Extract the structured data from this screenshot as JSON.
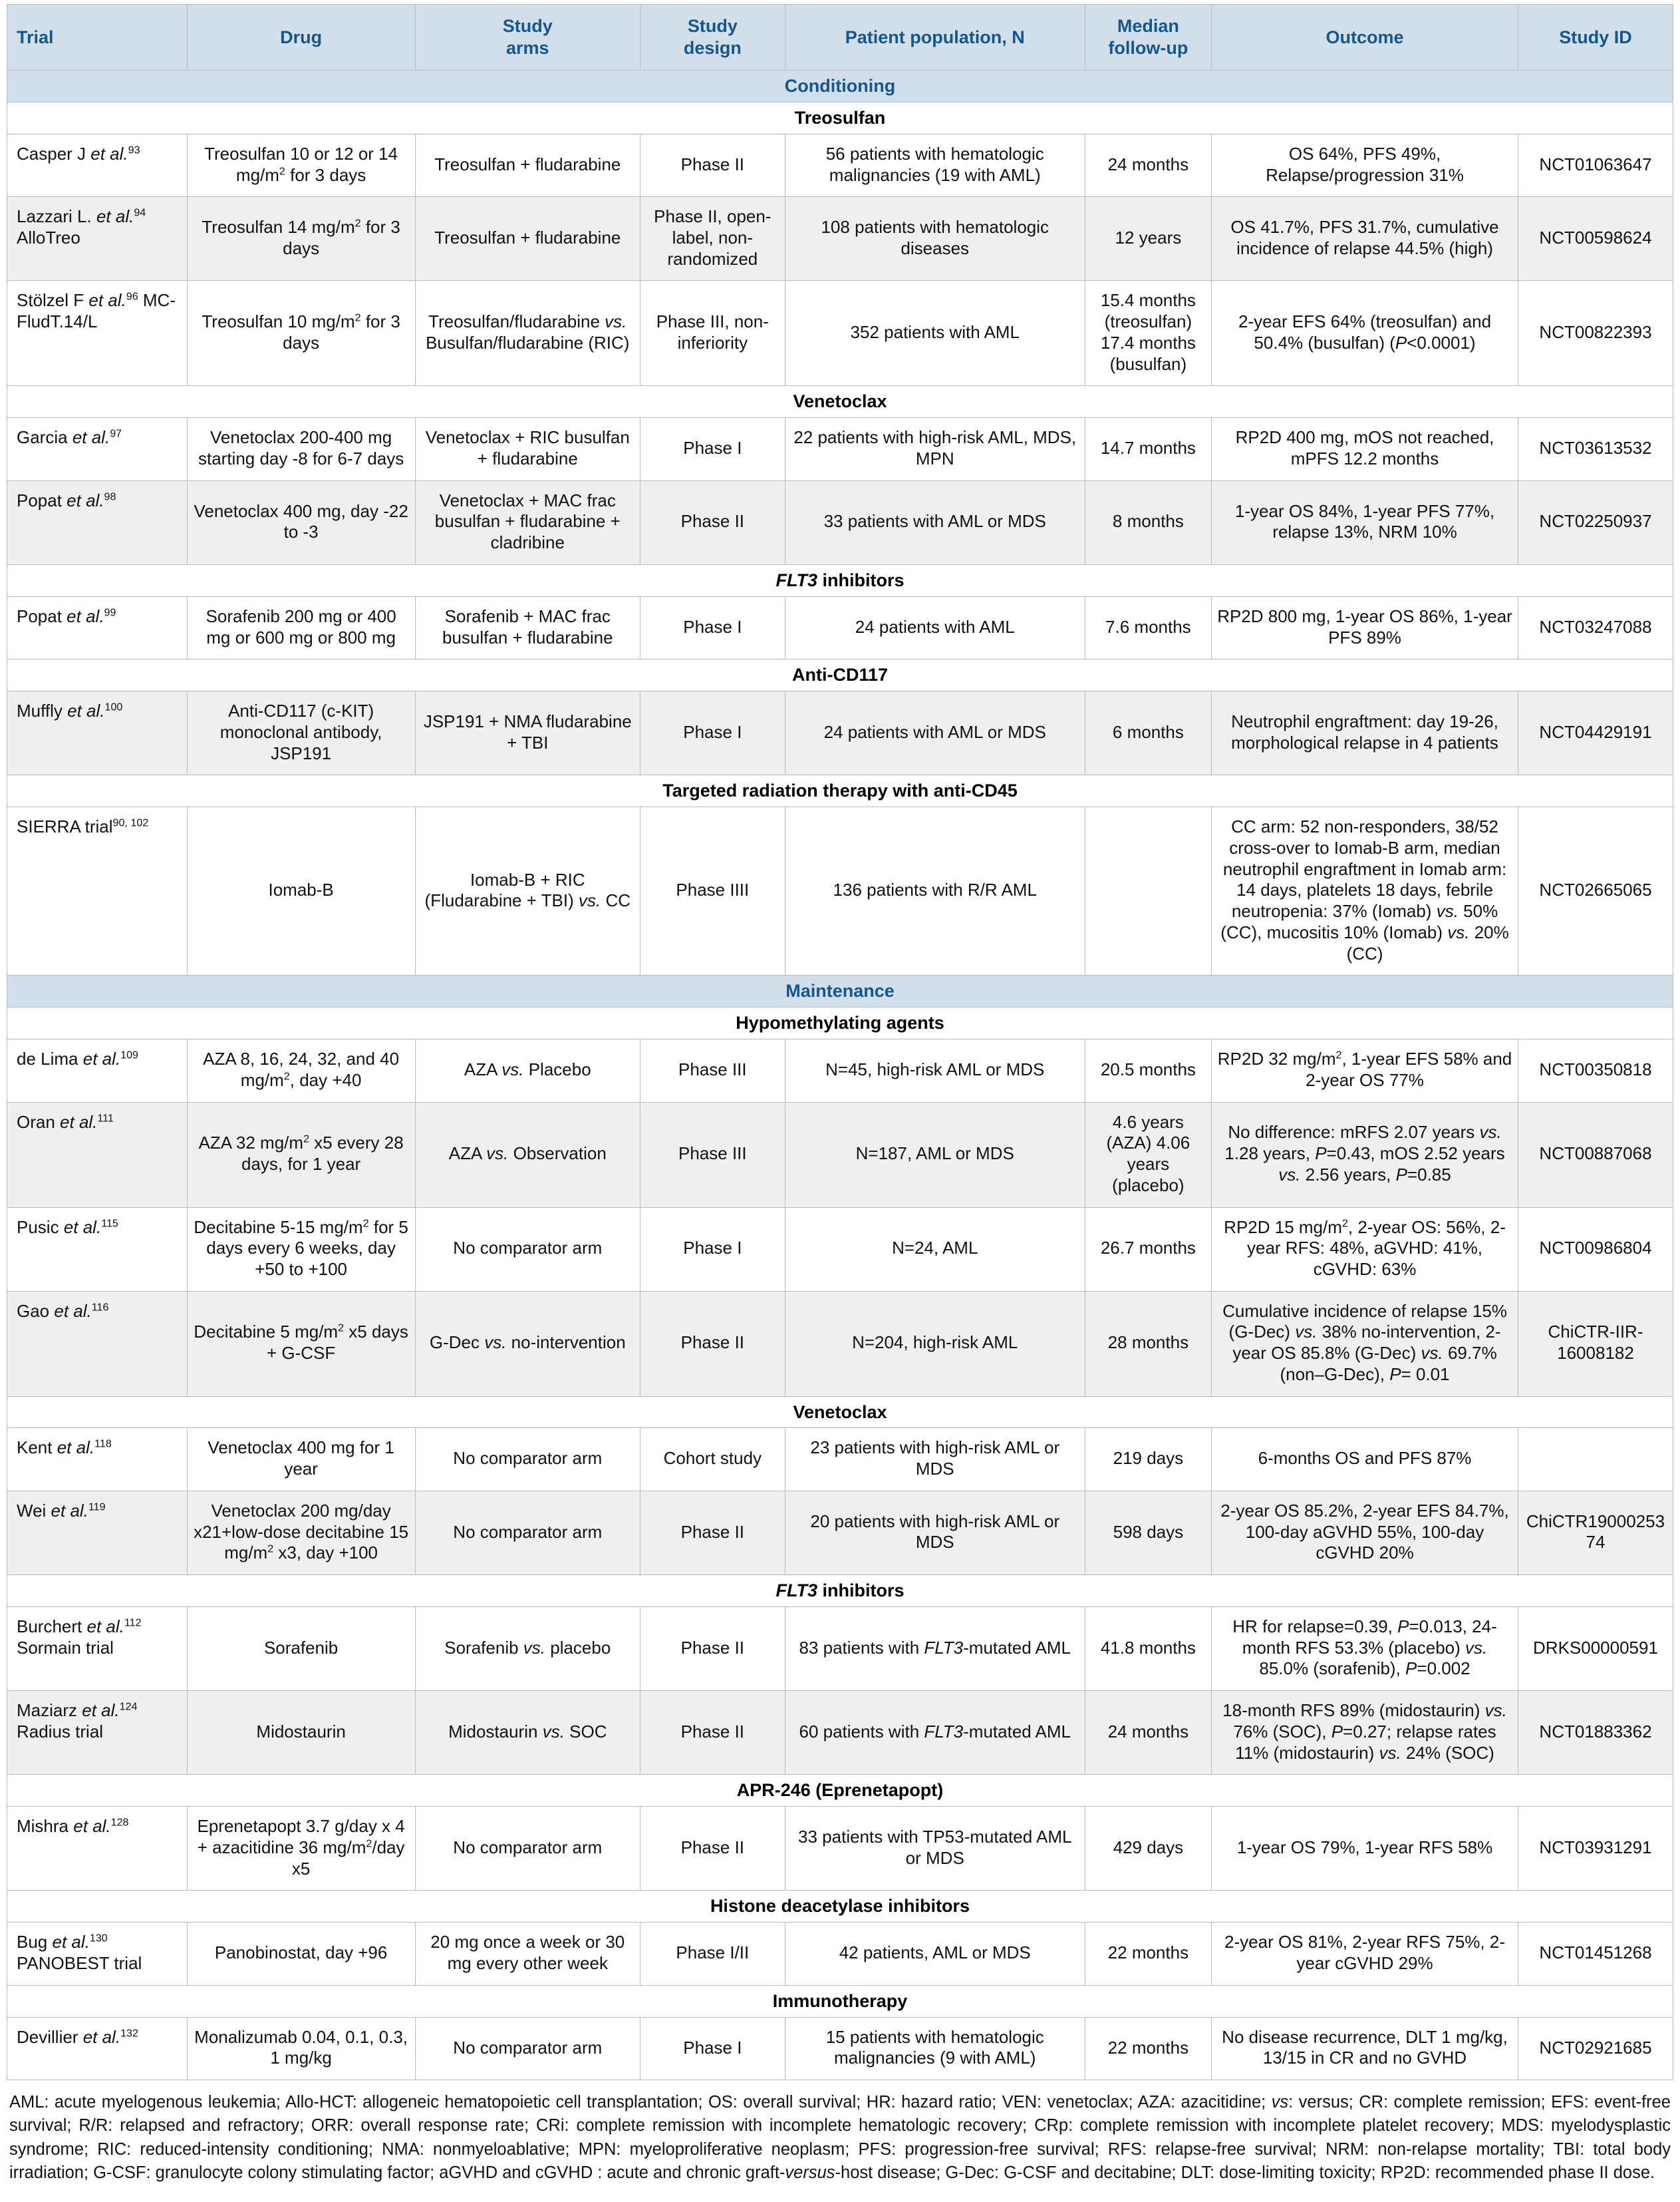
{
  "table": {
    "columns": [
      "Trial",
      "Drug",
      "Study\narms",
      "Study\ndesign",
      "Patient population, N",
      "Median\nfollow-up",
      "Outcome",
      "Study ID"
    ],
    "groups": [
      {
        "label": "Conditioning",
        "subsections": [
          {
            "label": "Treosulfan",
            "rows": [
              {
                "shaded": false,
                "trial": "Casper J //et al.//^{93}",
                "drug": "Treosulfan 10 or 12 or 14 mg/m^{2} for 3 days",
                "arms": "Treosulfan + fludarabine",
                "design": "Phase II",
                "population": "56 patients with hematologic malignancies (19 with AML)",
                "followup": "24 months",
                "outcome": "OS 64%, PFS 49%, Relapse/progression 31%",
                "id": "NCT01063647"
              },
              {
                "shaded": true,
                "trial": "Lazzari L. //et al.//^{94} AlloTreo",
                "drug": "Treosulfan 14 mg/m^{2} for 3 days",
                "arms": "Treosulfan + fludarabine",
                "design": "Phase II, open-label, non-randomized",
                "population": "108 patients with hematologic diseases",
                "followup": "12 years",
                "outcome": "OS 41.7%, PFS 31.7%, cumulative incidence of relapse 44.5% (high)",
                "id": "NCT00598624"
              },
              {
                "shaded": false,
                "trial": "Stölzel F //et al.//^{96} MC-FludT.14/L",
                "drug": "Treosulfan 10 mg/m^{2} for 3 days",
                "arms": "Treosulfan/fludarabine //vs.// Busulfan/fludarabine (RIC)",
                "design": "Phase III, non-inferiority",
                "population": "352 patients with AML",
                "followup": "15.4 months (treosulfan) 17.4 months (busulfan)",
                "outcome": "2-year EFS 64% (treosulfan) and 50.4% (busulfan) (//P//<0.0001)",
                "id": "NCT00822393"
              }
            ]
          },
          {
            "label": "Venetoclax",
            "rows": [
              {
                "shaded": false,
                "trial": "Garcia //et al.//^{97}",
                "drug": "Venetoclax 200-400 mg starting day -8 for 6-7 days",
                "arms": "Venetoclax + RIC busulfan + fludarabine",
                "design": "Phase I",
                "population": "22 patients with high-risk AML, MDS, MPN",
                "followup": "14.7 months",
                "outcome": "RP2D 400 mg, mOS not reached, mPFS 12.2 months",
                "id": "NCT03613532"
              },
              {
                "shaded": true,
                "trial": "Popat //et al.//^{98}",
                "drug": "Venetoclax 400 mg, day -22 to -3",
                "arms": "Venetoclax + MAC frac busulfan + fludarabine + cladribine",
                "design": "Phase II",
                "population": "33 patients with AML or MDS",
                "followup": "8 months",
                "outcome": "1-year OS 84%, 1-year PFS 77%, relapse 13%, NRM 10%",
                "id": "NCT02250937"
              }
            ]
          },
          {
            "label": "//FLT3// inhibitors",
            "rows": [
              {
                "shaded": false,
                "trial": "Popat //et al.//^{99}",
                "drug": "Sorafenib 200 mg or 400 mg or 600 mg or 800 mg",
                "arms": "Sorafenib + MAC frac busulfan + fludarabine",
                "design": "Phase I",
                "population": "24 patients with AML",
                "followup": "7.6 months",
                "outcome": "RP2D 800 mg, 1-year OS 86%, 1-year PFS 89%",
                "id": "NCT03247088"
              }
            ]
          },
          {
            "label": "Anti-CD117",
            "rows": [
              {
                "shaded": true,
                "trial": "Muffly //et al.//^{100}",
                "drug": "Anti-CD117 (c-KIT) monoclonal antibody, JSP191",
                "arms": "JSP191 + NMA fludarabine + TBI",
                "design": "Phase I",
                "population": "24 patients with AML or MDS",
                "followup": "6 months",
                "outcome": "Neutrophil engraftment: day 19-26, morphological relapse in 4 patients",
                "id": "NCT04429191"
              }
            ]
          },
          {
            "label": "Targeted radiation therapy with anti-CD45",
            "rows": [
              {
                "shaded": false,
                "trial": "SIERRA trial^{90, 102}",
                "drug": "Iomab-B",
                "arms": "Iomab-B + RIC (Fludarabine + TBI) //vs.// CC",
                "design": "Phase IIII",
                "population": "136 patients with R/R AML",
                "followup": "",
                "outcome": "CC arm: 52 non-responders, 38/52 cross-over to Iomab-B arm, median neutrophil engraftment in Iomab arm: 14 days, platelets 18 days, febrile neutropenia: 37% (Iomab) //vs.// 50% (CC), mucositis 10% (Iomab) //vs.// 20% (CC)",
                "id": "NCT02665065"
              }
            ]
          }
        ]
      },
      {
        "label": "Maintenance",
        "subsections": [
          {
            "label": "Hypomethylating agents",
            "rows": [
              {
                "shaded": false,
                "trial": "de Lima //et al.//^{109}",
                "drug": "AZA 8, 16, 24, 32, and 40 mg/m^{2}, day +40",
                "arms": "AZA //vs.// Placebo",
                "design": "Phase III",
                "population": "N=45, high-risk AML or MDS",
                "followup": "20.5 months",
                "outcome": "RP2D 32 mg/m^{2}, 1-year EFS 58% and 2-year OS 77%",
                "id": "NCT00350818"
              },
              {
                "shaded": true,
                "trial": "Oran //et al.//^{111}",
                "drug": "AZA 32 mg/m^{2} x5 every 28 days, for 1 year",
                "arms": "AZA //vs.// Observation",
                "design": "Phase III",
                "population": "N=187, AML or MDS",
                "followup": "4.6 years (AZA) 4.06 years (placebo)",
                "outcome": "No difference: mRFS 2.07 years //vs.// 1.28 years, //P//=0.43, mOS 2.52 years //vs.// 2.56 years, //P//=0.85",
                "id": "NCT00887068"
              },
              {
                "shaded": false,
                "trial": "Pusic //et al.//^{115}",
                "drug": "Decitabine 5-15 mg/m^{2} for 5 days every 6 weeks, day +50 to +100",
                "arms": "No comparator arm",
                "design": "Phase I",
                "population": "N=24, AML",
                "followup": "26.7 months",
                "outcome": "RP2D 15 mg/m^{2}, 2-year OS: 56%, 2-year RFS: 48%, aGVHD: 41%, cGVHD: 63%",
                "id": "NCT00986804"
              },
              {
                "shaded": true,
                "trial": "Gao //et al.//^{116}",
                "drug": "Decitabine 5 mg/m^{2} x5 days + G-CSF",
                "arms": "G-Dec //vs.// no-intervention",
                "design": "Phase II",
                "population": "N=204, high-risk AML",
                "followup": "28 months",
                "outcome": "Cumulative incidence of relapse 15% (G-Dec) //vs.// 38% no-intervention, 2-year OS 85.8% (G-Dec) //vs.// 69.7% (non–G-Dec), //P//= 0.01",
                "id": "ChiCTR-IIR-16008182"
              }
            ]
          },
          {
            "label": "Venetoclax",
            "rows": [
              {
                "shaded": false,
                "trial": "Kent //et al.//^{118}",
                "drug": "Venetoclax 400 mg for 1 year",
                "arms": "No comparator arm",
                "design": "Cohort study",
                "population": "23 patients with high-risk AML or MDS",
                "followup": "219 days",
                "outcome": "6-months OS and PFS 87%",
                "id": ""
              },
              {
                "shaded": true,
                "trial": "Wei //et al.//^{119}",
                "drug": "Venetoclax 200 mg/day x21+low-dose decitabine 15 mg/m^{2} x3, day +100",
                "arms": "No comparator arm",
                "design": "Phase II",
                "population": "20 patients with high-risk AML or MDS",
                "followup": "598 days",
                "outcome": "2-year OS 85.2%, 2-year EFS 84.7%, 100-day aGVHD 55%, 100-day cGVHD 20%",
                "id": "ChiCTR1900025374"
              }
            ]
          },
          {
            "label": "//FLT3// inhibitors",
            "rows": [
              {
                "shaded": false,
                "trial": "Burchert //et al.//^{112} Sormain trial",
                "drug": "Sorafenib",
                "arms": "Sorafenib //vs.// placebo",
                "design": "Phase II",
                "population": "83 patients with //FLT3//-mutated AML",
                "followup": "41.8 months",
                "outcome": "HR for relapse=0.39, //P//=0.013, 24-month RFS 53.3% (placebo) //vs.// 85.0% (sorafenib), //P//=0.002",
                "id": "DRKS00000591"
              },
              {
                "shaded": true,
                "trial": "Maziarz //et al.//^{124} Radius trial",
                "drug": "Midostaurin",
                "arms": "Midostaurin //vs.// SOC",
                "design": "Phase II",
                "population": "60 patients with //FLT3//-mutated AML",
                "followup": "24 months",
                "outcome": "18-month RFS 89% (midostaurin) //vs.// 76% (SOC), //P//=0.27; relapse rates 11% (midostaurin) //vs.// 24% (SOC)",
                "id": "NCT01883362"
              }
            ]
          },
          {
            "label": "APR-246 (Eprenetapopt)",
            "rows": [
              {
                "shaded": false,
                "trial": "Mishra //et al.//^{128}",
                "drug": "Eprenetapopt 3.7 g/day x 4 + azacitidine 36 mg/m^{2}/day x5",
                "arms": "No comparator arm",
                "design": "Phase II",
                "population": "33 patients with TP53-mutated AML or MDS",
                "followup": "429 days",
                "outcome": "1-year OS 79%, 1-year RFS 58%",
                "id": "NCT03931291"
              }
            ]
          },
          {
            "label": "Histone deacetylase inhibitors",
            "rows": [
              {
                "shaded": false,
                "trial": "Bug //et al.//^{130} PANOBEST trial",
                "drug": "Panobinostat, day +96",
                "arms": "20 mg once a week or 30 mg every other week",
                "design": "Phase I/II",
                "population": "42 patients, AML or MDS",
                "followup": "22 months",
                "outcome": "2-year OS 81%, 2-year RFS 75%, 2-year cGVHD 29%",
                "id": "NCT01451268"
              }
            ]
          },
          {
            "label": "Immunotherapy",
            "rows": [
              {
                "shaded": false,
                "trial": "Devillier //et al.//^{132}",
                "drug": "Monalizumab 0.04, 0.1, 0.3, 1 mg/kg",
                "arms": "No comparator arm",
                "design": "Phase I",
                "population": "15 patients with hematologic malignancies (9 with AML)",
                "followup": "22 months",
                "outcome": "No disease recurrence, DLT 1 mg/kg, 13/15 in CR and no GVHD",
                "id": "NCT02921685"
              }
            ]
          }
        ]
      }
    ]
  },
  "colors": {
    "band_background": "#d2deea",
    "band_text": "#14578d",
    "shaded_row": "#efefef"
  },
  "footnote": "AML: acute myelogenous leukemia; Allo-HCT: allogeneic hematopoietic cell transplantation; OS: overall survival; HR: hazard ratio; VEN: venetoclax; AZA: azacitidine; //vs//: versus; CR: complete remission; EFS: event-free survival; R/R: relapsed and refractory; ORR: overall response rate; CRi: complete remission with incomplete hematologic recovery; CRp: complete remission with incomplete platelet recovery; MDS: myelodysplastic syndrome; RIC: reduced-intensity conditioning; NMA: nonmyeloablative; MPN: myeloproliferative neoplasm; PFS: progression-free survival; RFS: relapse-free survival; NRM: non-relapse mortality; TBI: total body irradiation; G-CSF: granulocyte colony stimulating factor; aGVHD and cGVHD : acute and chronic graft-//versus//-host disease; G-Dec: G-CSF and decitabine; DLT: dose-limiting toxicity; RP2D: recommended phase II dose."
}
